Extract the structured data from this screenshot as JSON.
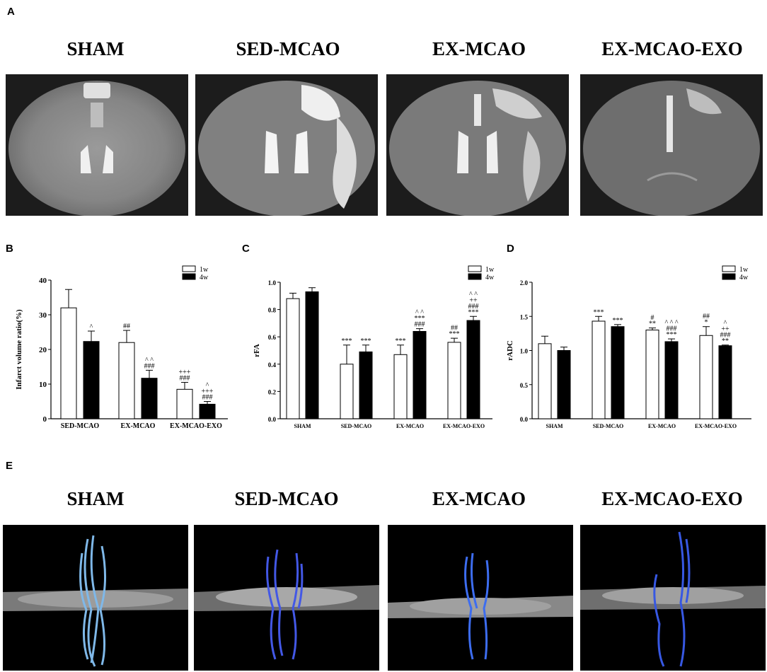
{
  "panels": {
    "a": "A",
    "b": "B",
    "c": "C",
    "d": "D",
    "e": "E"
  },
  "groups_a": [
    "SHAM",
    "SED-MCAO",
    "EX-MCAO",
    "EX-MCAO-EXO"
  ],
  "groups_e": [
    "SHAM",
    "SED-MCAO",
    "EX-MCAO",
    "EX-MCAO-EXO"
  ],
  "legend": {
    "w1": "1w",
    "w4": "4w"
  },
  "colors": {
    "w1": "#ffffff",
    "w4": "#000000",
    "fiber": "#3a56e0",
    "fiber_cyan": "#4fb6e6"
  },
  "chart_data": [
    {
      "type": "bar",
      "ylabel": "Infarct volume ratio(%)",
      "xlabel": "",
      "ylim": [
        0,
        40
      ],
      "yticks": [
        0,
        10,
        20,
        30,
        40
      ],
      "categories": [
        "SED-MCAO",
        "EX-MCAO",
        "EX-MCAO-EXO"
      ],
      "series": [
        {
          "name": "1w",
          "values": [
            32,
            22,
            8.5
          ],
          "errors": [
            5.3,
            3.5,
            2.0
          ]
        },
        {
          "name": "4w",
          "values": [
            22.3,
            11.7,
            4.2
          ],
          "errors": [
            3.0,
            2.3,
            0.8
          ]
        }
      ],
      "annotations": [
        [
          "",
          "^"
        ],
        [
          "##",
          "^ ^|###"
        ],
        [
          "+++|###",
          "^|+++|###"
        ]
      ]
    },
    {
      "type": "bar",
      "ylabel": "rFA",
      "xlabel": "",
      "ylim": [
        0,
        1.0
      ],
      "yticks": [
        0.0,
        0.2,
        0.4,
        0.6,
        0.8,
        1.0
      ],
      "categories": [
        "SHAM",
        "SED-MCAO",
        "EX-MCAO",
        "EX-MCAO-EXO"
      ],
      "series": [
        {
          "name": "1w",
          "values": [
            0.88,
            0.4,
            0.47,
            0.56
          ],
          "errors": [
            0.04,
            0.14,
            0.07,
            0.03
          ]
        },
        {
          "name": "4w",
          "values": [
            0.93,
            0.49,
            0.64,
            0.72
          ],
          "errors": [
            0.03,
            0.05,
            0.02,
            0.03
          ]
        }
      ],
      "annotations": [
        [
          "",
          ""
        ],
        [
          "***",
          "***"
        ],
        [
          "***",
          "^ ^|***|###"
        ],
        [
          "##|***",
          "^ ^|++|###|***"
        ]
      ]
    },
    {
      "type": "bar",
      "ylabel": "rADC",
      "xlabel": "",
      "ylim": [
        0,
        2.0
      ],
      "yticks": [
        0.0,
        0.5,
        1.0,
        1.5,
        2.0
      ],
      "categories": [
        "SHAM",
        "SED-MCAO",
        "EX-MCAO",
        "EX-MCAO-EXO"
      ],
      "series": [
        {
          "name": "1w",
          "values": [
            1.1,
            1.43,
            1.3,
            1.22
          ],
          "errors": [
            0.11,
            0.07,
            0.03,
            0.13
          ]
        },
        {
          "name": "4w",
          "values": [
            1.0,
            1.35,
            1.13,
            1.07
          ],
          "errors": [
            0.05,
            0.03,
            0.04,
            0.01
          ]
        }
      ],
      "annotations": [
        [
          "",
          ""
        ],
        [
          "***",
          "***"
        ],
        [
          "#|**",
          "^ ^ ^|###|***"
        ],
        [
          "##|*",
          "^|++|###|**"
        ]
      ]
    }
  ]
}
